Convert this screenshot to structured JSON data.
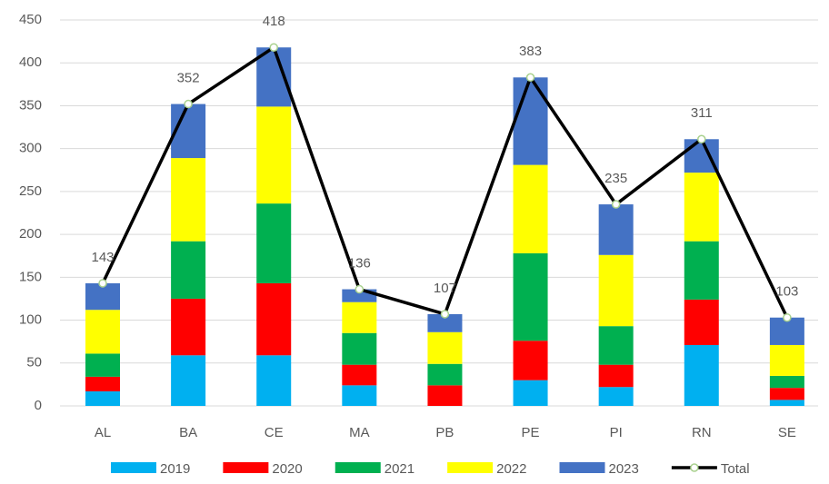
{
  "chart_data": {
    "type": "bar",
    "stacked": true,
    "categories": [
      "AL",
      "BA",
      "CE",
      "MA",
      "PB",
      "PE",
      "PI",
      "RN",
      "SE"
    ],
    "series": [
      {
        "name": "2019",
        "color": "#00b0f0",
        "values": [
          17,
          59,
          59,
          24,
          0,
          30,
          22,
          71,
          7
        ]
      },
      {
        "name": "2020",
        "color": "#ff0000",
        "values": [
          17,
          66,
          84,
          24,
          24,
          46,
          26,
          53,
          14
        ]
      },
      {
        "name": "2021",
        "color": "#00b050",
        "values": [
          27,
          67,
          93,
          37,
          25,
          102,
          45,
          68,
          14
        ]
      },
      {
        "name": "2022",
        "color": "#ffff00",
        "values": [
          51,
          97,
          113,
          36,
          37,
          103,
          83,
          80,
          36
        ]
      },
      {
        "name": "2023",
        "color": "#4472c4",
        "values": [
          31,
          63,
          69,
          15,
          21,
          102,
          59,
          39,
          32
        ]
      },
      {
        "name": "Total",
        "type": "line",
        "color": "#000000",
        "marker_color": "#a9d18e",
        "values": [
          143,
          352,
          418,
          136,
          107,
          383,
          235,
          311,
          103
        ]
      }
    ],
    "ylim": [
      0,
      450
    ],
    "yticks": [
      0,
      50,
      100,
      150,
      200,
      250,
      300,
      350,
      400,
      450
    ],
    "grid": true,
    "legend": "bottom"
  }
}
